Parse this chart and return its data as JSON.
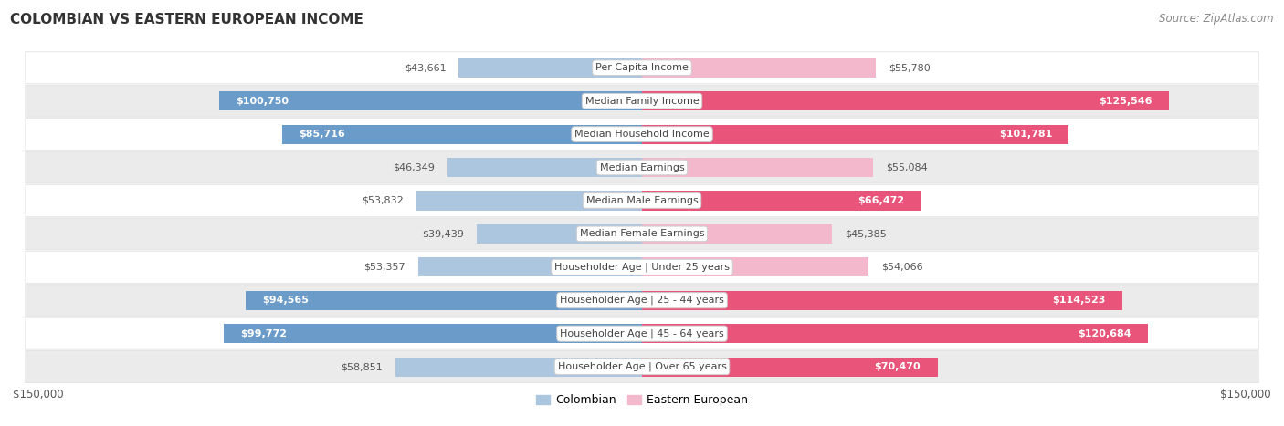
{
  "title": "COLOMBIAN VS EASTERN EUROPEAN INCOME",
  "source": "Source: ZipAtlas.com",
  "categories": [
    "Per Capita Income",
    "Median Family Income",
    "Median Household Income",
    "Median Earnings",
    "Median Male Earnings",
    "Median Female Earnings",
    "Householder Age | Under 25 years",
    "Householder Age | 25 - 44 years",
    "Householder Age | 45 - 64 years",
    "Householder Age | Over 65 years"
  ],
  "colombian_values": [
    43661,
    100750,
    85716,
    46349,
    53832,
    39439,
    53357,
    94565,
    99772,
    58851
  ],
  "eastern_values": [
    55780,
    125546,
    101781,
    55084,
    66472,
    45385,
    54066,
    114523,
    120684,
    70470
  ],
  "colombian_labels": [
    "$43,661",
    "$100,750",
    "$85,716",
    "$46,349",
    "$53,832",
    "$39,439",
    "$53,357",
    "$94,565",
    "$99,772",
    "$58,851"
  ],
  "eastern_labels": [
    "$55,780",
    "$125,546",
    "$101,781",
    "$55,084",
    "$66,472",
    "$45,385",
    "$54,066",
    "$114,523",
    "$120,684",
    "$70,470"
  ],
  "colombian_color_light": "#adc6e0",
  "colombian_color_dark": "#6b9bc9",
  "eastern_color_light": "#f4b8cc",
  "eastern_color_dark": "#e8547a",
  "inside_label_threshold": 60000,
  "max_value": 150000,
  "xlabel_left": "$150,000",
  "xlabel_right": "$150,000",
  "row_colors": [
    "#ffffff",
    "#ebebeb"
  ],
  "label_inside_color": "#ffffff",
  "label_outside_color": "#555555",
  "cat_label_color": "#444444",
  "title_color": "#333333",
  "source_color": "#888888",
  "legend_labels": [
    "Colombian",
    "Eastern European"
  ]
}
